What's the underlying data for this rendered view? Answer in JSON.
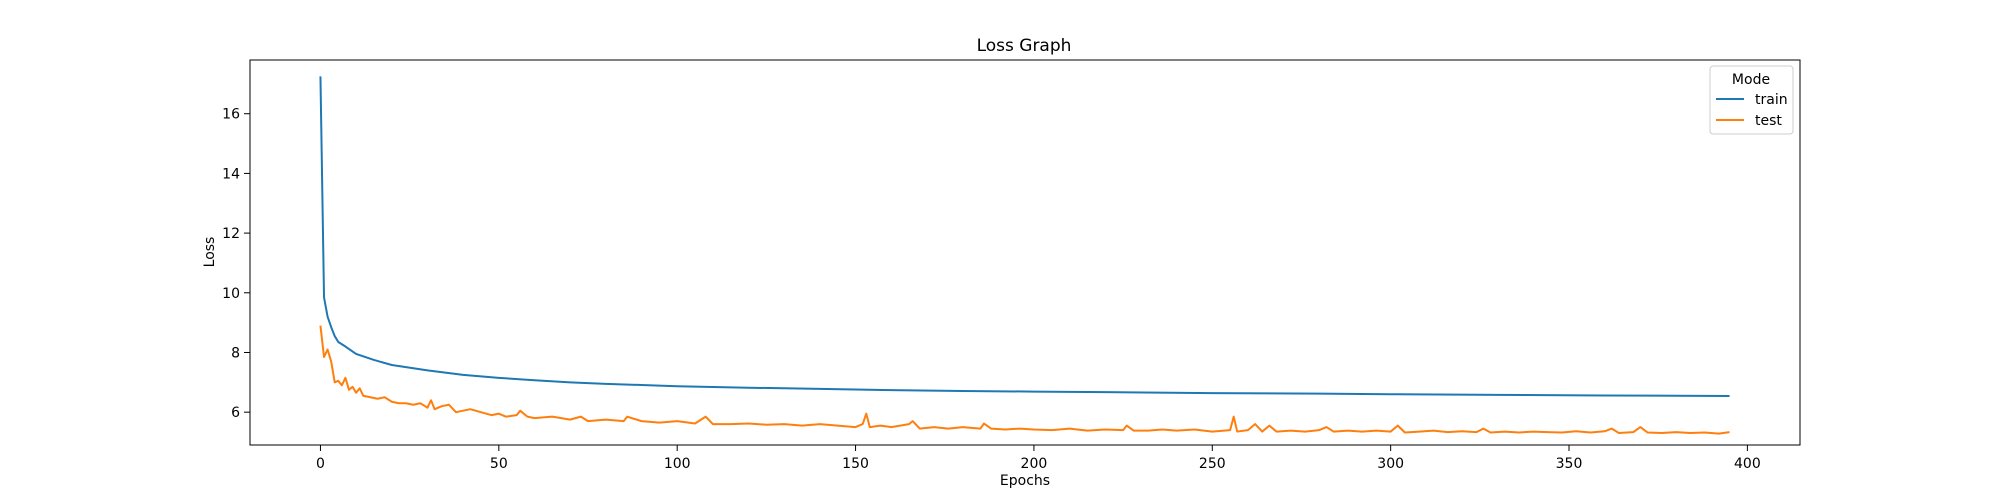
{
  "chart_data": {
    "type": "line",
    "title": "Loss Graph",
    "xlabel": "Epochs",
    "ylabel": "Loss",
    "xlim": [
      -19.75,
      414.75
    ],
    "ylim": [
      4.9,
      17.8
    ],
    "x_ticks": [
      0,
      50,
      100,
      150,
      200,
      250,
      300,
      350,
      400
    ],
    "y_ticks": [
      6,
      8,
      10,
      12,
      14,
      16
    ],
    "legend": {
      "title": "Mode",
      "position": "top-right"
    },
    "grid": false,
    "series": [
      {
        "name": "train",
        "color": "#1f77b4",
        "points": [
          [
            0,
            17.25
          ],
          [
            1,
            9.85
          ],
          [
            2,
            9.2
          ],
          [
            3,
            8.85
          ],
          [
            4,
            8.55
          ],
          [
            5,
            8.35
          ],
          [
            7,
            8.2
          ],
          [
            10,
            7.95
          ],
          [
            15,
            7.75
          ],
          [
            20,
            7.58
          ],
          [
            30,
            7.4
          ],
          [
            40,
            7.25
          ],
          [
            50,
            7.15
          ],
          [
            60,
            7.07
          ],
          [
            70,
            7.0
          ],
          [
            80,
            6.95
          ],
          [
            90,
            6.91
          ],
          [
            100,
            6.87
          ],
          [
            120,
            6.82
          ],
          [
            140,
            6.78
          ],
          [
            160,
            6.74
          ],
          [
            180,
            6.71
          ],
          [
            200,
            6.69
          ],
          [
            220,
            6.67
          ],
          [
            250,
            6.64
          ],
          [
            280,
            6.62
          ],
          [
            300,
            6.6
          ],
          [
            330,
            6.58
          ],
          [
            360,
            6.56
          ],
          [
            395,
            6.54
          ]
        ]
      },
      {
        "name": "test",
        "color": "#ff7f0e",
        "points": [
          [
            0,
            8.9
          ],
          [
            1,
            7.85
          ],
          [
            2,
            8.1
          ],
          [
            3,
            7.7
          ],
          [
            4,
            7.0
          ],
          [
            5,
            7.05
          ],
          [
            6,
            6.9
          ],
          [
            7,
            7.15
          ],
          [
            8,
            6.75
          ],
          [
            9,
            6.85
          ],
          [
            10,
            6.65
          ],
          [
            11,
            6.8
          ],
          [
            12,
            6.55
          ],
          [
            14,
            6.5
          ],
          [
            16,
            6.45
          ],
          [
            18,
            6.5
          ],
          [
            20,
            6.35
          ],
          [
            22,
            6.3
          ],
          [
            24,
            6.3
          ],
          [
            26,
            6.25
          ],
          [
            28,
            6.3
          ],
          [
            30,
            6.15
          ],
          [
            31,
            6.4
          ],
          [
            32,
            6.1
          ],
          [
            34,
            6.2
          ],
          [
            36,
            6.25
          ],
          [
            38,
            6.0
          ],
          [
            40,
            6.05
          ],
          [
            42,
            6.1
          ],
          [
            45,
            6.0
          ],
          [
            48,
            5.9
          ],
          [
            50,
            5.95
          ],
          [
            52,
            5.85
          ],
          [
            55,
            5.9
          ],
          [
            56,
            6.05
          ],
          [
            58,
            5.85
          ],
          [
            60,
            5.8
          ],
          [
            65,
            5.85
          ],
          [
            70,
            5.75
          ],
          [
            73,
            5.85
          ],
          [
            75,
            5.7
          ],
          [
            80,
            5.75
          ],
          [
            85,
            5.7
          ],
          [
            86,
            5.85
          ],
          [
            90,
            5.7
          ],
          [
            95,
            5.65
          ],
          [
            100,
            5.7
          ],
          [
            105,
            5.62
          ],
          [
            108,
            5.85
          ],
          [
            110,
            5.6
          ],
          [
            115,
            5.6
          ],
          [
            120,
            5.62
          ],
          [
            125,
            5.58
          ],
          [
            130,
            5.6
          ],
          [
            135,
            5.55
          ],
          [
            140,
            5.6
          ],
          [
            145,
            5.55
          ],
          [
            150,
            5.5
          ],
          [
            152,
            5.6
          ],
          [
            153,
            5.95
          ],
          [
            154,
            5.5
          ],
          [
            157,
            5.55
          ],
          [
            160,
            5.5
          ],
          [
            165,
            5.6
          ],
          [
            166,
            5.7
          ],
          [
            168,
            5.45
          ],
          [
            172,
            5.5
          ],
          [
            176,
            5.45
          ],
          [
            180,
            5.5
          ],
          [
            185,
            5.45
          ],
          [
            186,
            5.62
          ],
          [
            188,
            5.45
          ],
          [
            192,
            5.42
          ],
          [
            196,
            5.45
          ],
          [
            200,
            5.42
          ],
          [
            205,
            5.4
          ],
          [
            210,
            5.45
          ],
          [
            215,
            5.38
          ],
          [
            220,
            5.42
          ],
          [
            225,
            5.4
          ],
          [
            226,
            5.55
          ],
          [
            228,
            5.38
          ],
          [
            232,
            5.38
          ],
          [
            236,
            5.42
          ],
          [
            240,
            5.38
          ],
          [
            245,
            5.42
          ],
          [
            250,
            5.35
          ],
          [
            255,
            5.4
          ],
          [
            256,
            5.85
          ],
          [
            257,
            5.35
          ],
          [
            260,
            5.4
          ],
          [
            262,
            5.6
          ],
          [
            264,
            5.35
          ],
          [
            266,
            5.55
          ],
          [
            268,
            5.35
          ],
          [
            272,
            5.38
          ],
          [
            276,
            5.35
          ],
          [
            280,
            5.4
          ],
          [
            282,
            5.5
          ],
          [
            284,
            5.35
          ],
          [
            288,
            5.38
          ],
          [
            292,
            5.35
          ],
          [
            296,
            5.38
          ],
          [
            300,
            5.35
          ],
          [
            302,
            5.55
          ],
          [
            304,
            5.32
          ],
          [
            308,
            5.35
          ],
          [
            312,
            5.38
          ],
          [
            316,
            5.33
          ],
          [
            320,
            5.36
          ],
          [
            324,
            5.33
          ],
          [
            326,
            5.45
          ],
          [
            328,
            5.32
          ],
          [
            332,
            5.35
          ],
          [
            336,
            5.32
          ],
          [
            340,
            5.35
          ],
          [
            344,
            5.33
          ],
          [
            348,
            5.32
          ],
          [
            352,
            5.36
          ],
          [
            356,
            5.32
          ],
          [
            360,
            5.36
          ],
          [
            362,
            5.45
          ],
          [
            364,
            5.3
          ],
          [
            368,
            5.33
          ],
          [
            370,
            5.5
          ],
          [
            372,
            5.32
          ],
          [
            376,
            5.3
          ],
          [
            380,
            5.33
          ],
          [
            384,
            5.3
          ],
          [
            388,
            5.32
          ],
          [
            392,
            5.28
          ],
          [
            395,
            5.33
          ]
        ]
      }
    ]
  }
}
